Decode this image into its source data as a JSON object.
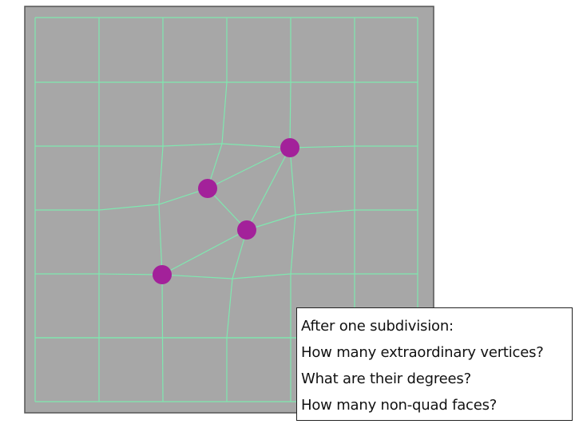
{
  "colors": {
    "frame_fill": "#a7a7a7",
    "frame_stroke": "#555555",
    "edge": "#7fe8b0",
    "vertex": "#a3219a",
    "text": "#111111",
    "box_border": "#222222"
  },
  "figure": {
    "grid_columns": 6,
    "grid_rows": 6,
    "highlighted_vertex_count": 4,
    "highlighted_vertex_shape": "filled-circle"
  },
  "question_box": {
    "lines": [
      "After one subdivision:",
      "How many extraordinary vertices?",
      "What are their degrees?",
      "How many non-quad faces?"
    ]
  }
}
